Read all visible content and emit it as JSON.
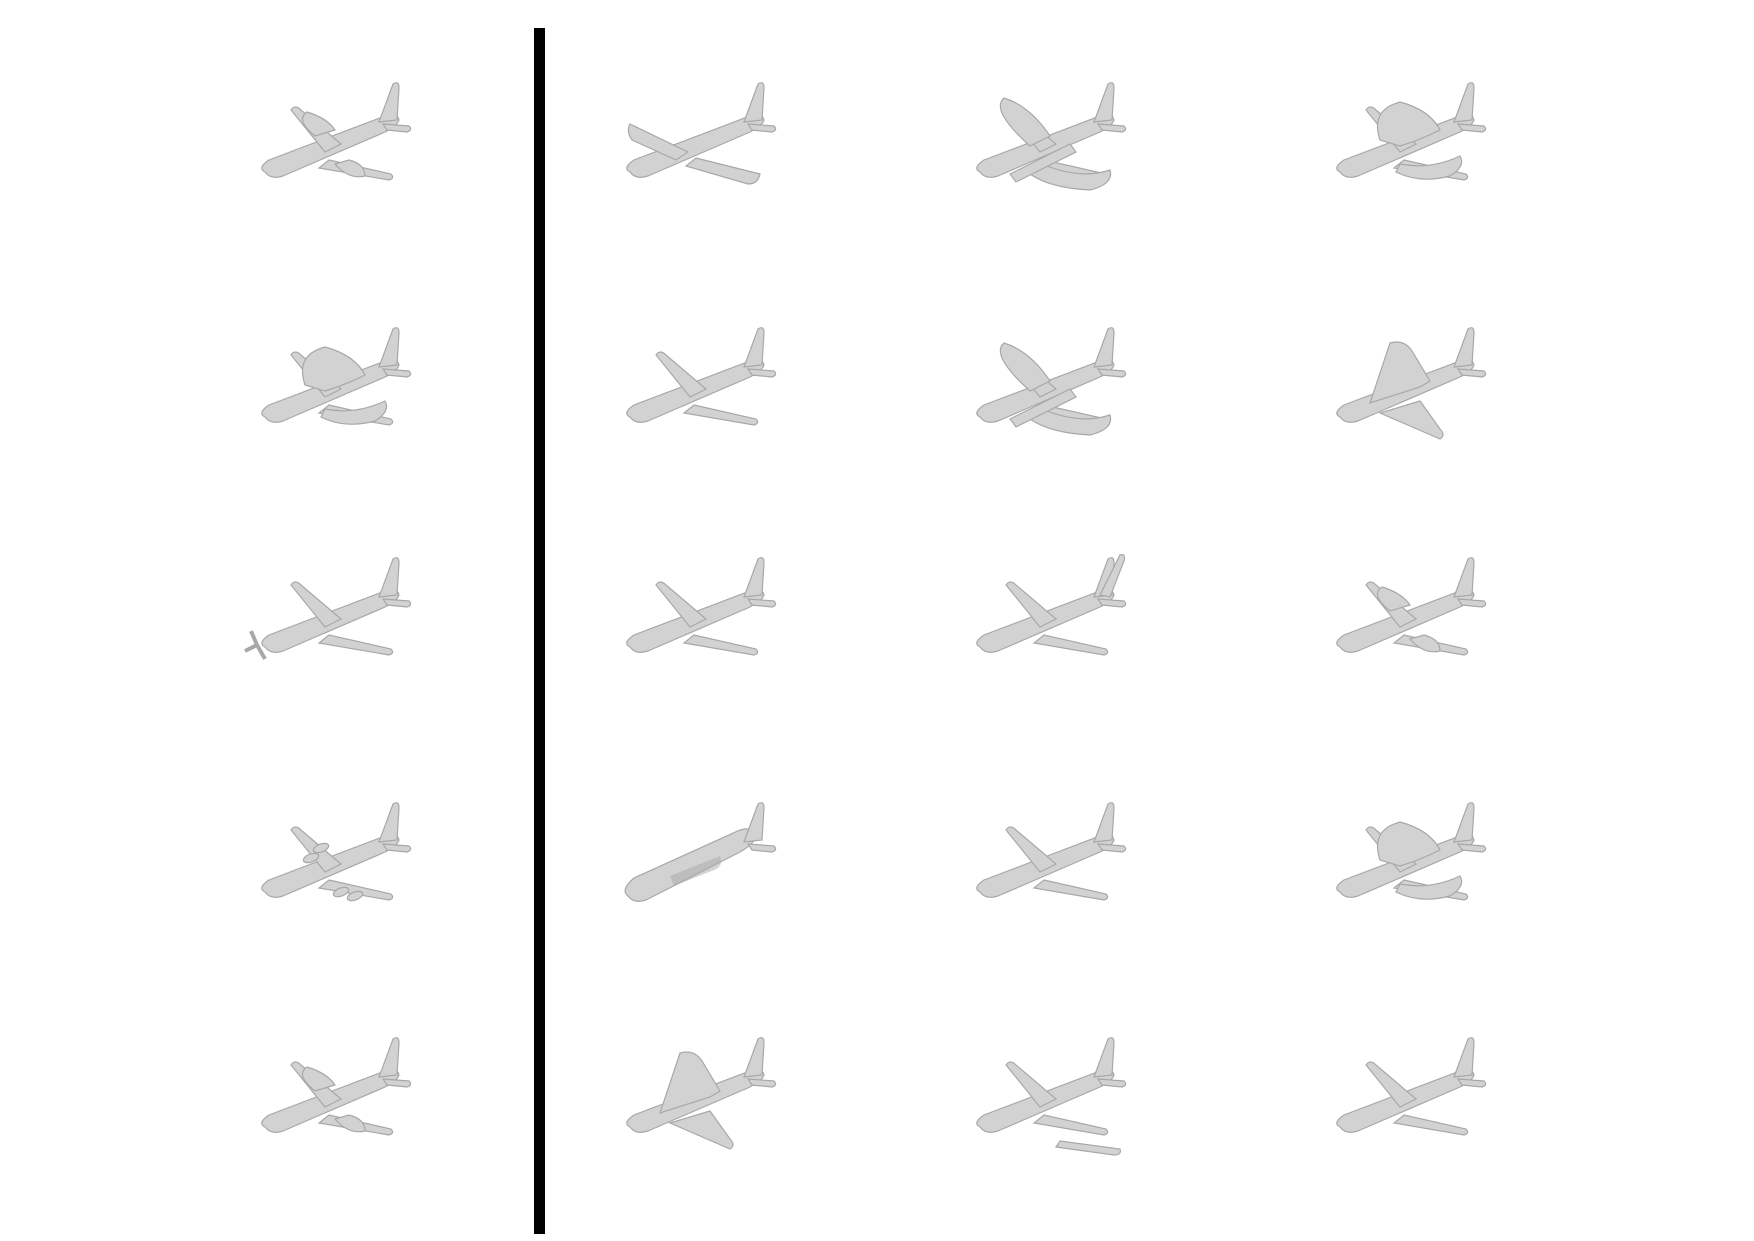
{
  "figure": {
    "background_color": "#ffffff",
    "plane_color": "#d2d2d2",
    "plane_shade_color": "#a8a8a8",
    "divider_color": "#000000",
    "left_column": {
      "rows": 5,
      "items": [
        {
          "variant": "jet-with-artifacts"
        },
        {
          "variant": "blobby-jet"
        },
        {
          "variant": "propeller-plane"
        },
        {
          "variant": "airliner-four-engine"
        },
        {
          "variant": "airliner-with-artifacts"
        }
      ]
    },
    "right_grid": {
      "rows": 5,
      "columns": 3,
      "items": [
        [
          "straight-wing-plane",
          "biplane-like-artifact",
          "blobby-jet"
        ],
        [
          "airliner",
          "biplane-like-artifact",
          "delta-wing"
        ],
        [
          "airliner",
          "airliner-twin-tail",
          "jet-with-artifacts"
        ],
        [
          "fuselage-only",
          "airliner",
          "blobby-jet"
        ],
        [
          "delta-wing",
          "airliner-detached-wing",
          "airliner"
        ]
      ]
    }
  }
}
